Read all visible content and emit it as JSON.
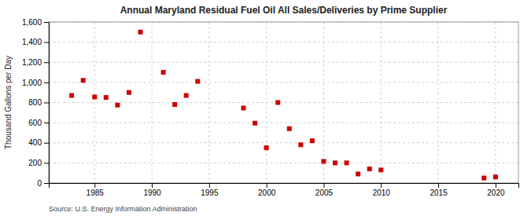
{
  "chart_data": {
    "type": "scatter",
    "title": "Annual Maryland Residual Fuel Oil All Sales/Deliveries by Prime Supplier",
    "ylabel": "Thousand Gallons per Day",
    "source": "Source: U.S. Energy Information Administration",
    "x": [
      1983,
      1984,
      1985,
      1986,
      1987,
      1988,
      1989,
      1991,
      1992,
      1993,
      1994,
      1998,
      1999,
      2000,
      2001,
      2002,
      2003,
      2004,
      2005,
      2006,
      2007,
      2008,
      2009,
      2010,
      2019,
      2020
    ],
    "values": [
      870,
      1020,
      855,
      850,
      775,
      900,
      1500,
      1100,
      780,
      870,
      1010,
      745,
      595,
      350,
      800,
      540,
      380,
      420,
      215,
      200,
      200,
      90,
      140,
      130,
      50,
      60
    ],
    "color": "#cc0000",
    "marker": "square",
    "xlim": [
      1981,
      2022
    ],
    "ylim": [
      0,
      1600
    ],
    "xticks": [
      1985,
      1990,
      1995,
      2000,
      2005,
      2010,
      2015,
      2020
    ],
    "yticks": [
      0,
      200,
      400,
      600,
      800,
      {
        "value": 1000,
        "label": "1,000"
      },
      {
        "value": 1200,
        "label": "1,200"
      },
      {
        "value": 1400,
        "label": "1,400"
      },
      {
        "value": 1600,
        "label": "1,600"
      }
    ],
    "grid": true
  }
}
